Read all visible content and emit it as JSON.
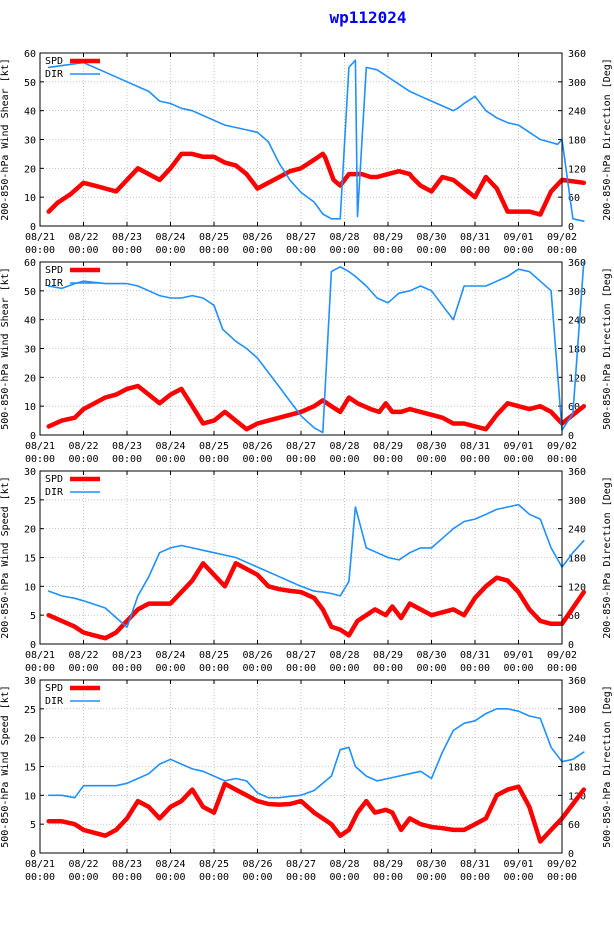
{
  "title": "wp112024",
  "colors": {
    "spd": "#ff0000",
    "dir": "#1e90ff",
    "frame": "#000000",
    "grid": "#a0a0a0",
    "title": "#0000ff"
  },
  "x_tick_labels": [
    [
      "08/21",
      "00:00"
    ],
    [
      "08/22",
      "00:00"
    ],
    [
      "08/23",
      "00:00"
    ],
    [
      "08/24",
      "00:00"
    ],
    [
      "08/25",
      "00:00"
    ],
    [
      "08/26",
      "00:00"
    ],
    [
      "08/27",
      "00:00"
    ],
    [
      "08/28",
      "00:00"
    ],
    [
      "08/29",
      "00:00"
    ],
    [
      "08/30",
      "00:00"
    ],
    [
      "08/31",
      "00:00"
    ],
    [
      "09/01",
      "00:00"
    ],
    [
      "09/02",
      "00:00"
    ]
  ],
  "chart_data": [
    {
      "type": "line",
      "ylabel": "200-850-hPa Wind Shear [kt]",
      "y2label": "200-850-hPa Direction [Deg]",
      "xlim": [
        0,
        12
      ],
      "ylim": [
        0,
        60
      ],
      "yticks": [
        0,
        10,
        20,
        30,
        40,
        50,
        60
      ],
      "y2lim": [
        0,
        360
      ],
      "y2ticks": [
        0,
        60,
        120,
        180,
        240,
        300,
        360
      ],
      "legend": [
        "SPD",
        "DIR"
      ],
      "series": [
        {
          "name": "SPD",
          "axis": "left",
          "x": [
            0.2,
            0.4,
            0.7,
            1.0,
            1.25,
            1.5,
            1.75,
            2.0,
            2.25,
            2.5,
            2.75,
            3.0,
            3.25,
            3.5,
            3.75,
            4.0,
            4.25,
            4.5,
            4.75,
            5.0,
            5.25,
            5.5,
            5.75,
            6.0,
            6.3,
            6.5,
            6.55,
            6.75,
            6.9,
            7.1,
            7.4,
            7.6,
            7.75,
            8.0,
            8.25,
            8.5,
            8.55,
            8.75,
            9.0,
            9.25,
            9.5,
            9.75,
            10.0,
            10.25,
            10.5,
            10.75,
            11.0,
            11.25,
            11.5,
            11.75,
            12.0,
            12.5
          ],
          "values": [
            5,
            8,
            11,
            15,
            14,
            13,
            12,
            16,
            20,
            18,
            16,
            20,
            25,
            25,
            24,
            24,
            22,
            21,
            18,
            13,
            15,
            17,
            19,
            20,
            23,
            25,
            24,
            16,
            14,
            18,
            18,
            17,
            17,
            18,
            19,
            18,
            17,
            14,
            12,
            17,
            16,
            13,
            10,
            17,
            13,
            5,
            5,
            5,
            4,
            12,
            16,
            15
          ]
        },
        {
          "name": "DIR",
          "axis": "right",
          "x": [
            0.2,
            1.0,
            1.5,
            2.0,
            2.25,
            2.5,
            2.75,
            3.0,
            3.25,
            3.5,
            3.75,
            4.0,
            4.25,
            4.5,
            4.75,
            5.0,
            5.25,
            5.5,
            5.75,
            6.0,
            6.3,
            6.5,
            6.7,
            6.9,
            7.1,
            7.25,
            7.3,
            7.5,
            7.75,
            8.0,
            8.25,
            8.5,
            8.75,
            9.0,
            9.25,
            9.5,
            9.6,
            9.75,
            10.0,
            10.25,
            10.5,
            10.75,
            11.0,
            11.25,
            11.5,
            11.7,
            11.9,
            12.0,
            12.25,
            12.5
          ],
          "values": [
            330,
            340,
            320,
            300,
            290,
            280,
            260,
            255,
            245,
            240,
            230,
            220,
            210,
            205,
            200,
            195,
            175,
            130,
            95,
            70,
            50,
            25,
            15,
            15,
            330,
            345,
            20,
            330,
            325,
            310,
            295,
            280,
            270,
            260,
            250,
            240,
            245,
            255,
            270,
            240,
            225,
            215,
            210,
            195,
            180,
            175,
            170,
            180,
            15,
            10
          ]
        }
      ]
    },
    {
      "type": "line",
      "ylabel": "500-850-hPa Wind Shear [kt]",
      "y2label": "500-850-hPa Direction [Deg]",
      "xlim": [
        0,
        12
      ],
      "ylim": [
        0,
        60
      ],
      "yticks": [
        0,
        10,
        20,
        30,
        40,
        50,
        60
      ],
      "y2lim": [
        0,
        360
      ],
      "y2ticks": [
        0,
        60,
        120,
        180,
        240,
        300,
        360
      ],
      "legend": [
        "SPD",
        "DIR"
      ],
      "series": [
        {
          "name": "SPD",
          "axis": "left",
          "x": [
            0.2,
            0.5,
            0.8,
            1.0,
            1.25,
            1.5,
            1.75,
            2.0,
            2.25,
            2.5,
            2.75,
            3.0,
            3.25,
            3.5,
            3.75,
            4.0,
            4.25,
            4.5,
            4.75,
            5.0,
            5.25,
            5.5,
            5.75,
            6.0,
            6.3,
            6.5,
            6.7,
            6.9,
            7.1,
            7.3,
            7.6,
            7.8,
            7.95,
            8.1,
            8.3,
            8.5,
            8.75,
            9.0,
            9.25,
            9.5,
            9.75,
            10.0,
            10.25,
            10.5,
            10.75,
            11.0,
            11.25,
            11.5,
            11.75,
            12.0,
            12.5
          ],
          "values": [
            3,
            5,
            6,
            9,
            11,
            13,
            14,
            16,
            17,
            14,
            11,
            14,
            16,
            10,
            4,
            5,
            8,
            5,
            2,
            4,
            5,
            6,
            7,
            8,
            10,
            12,
            10,
            8,
            13,
            11,
            9,
            8,
            11,
            8,
            8,
            9,
            8,
            7,
            6,
            4,
            4,
            3,
            2,
            7,
            11,
            10,
            9,
            10,
            8,
            4,
            10
          ]
        },
        {
          "name": "DIR",
          "axis": "right",
          "x": [
            0.2,
            0.5,
            0.8,
            1.0,
            1.5,
            2.0,
            2.25,
            2.5,
            2.75,
            3.0,
            3.25,
            3.5,
            3.75,
            4.0,
            4.2,
            4.5,
            4.75,
            5.0,
            5.25,
            5.5,
            5.75,
            6.0,
            6.3,
            6.5,
            6.7,
            6.9,
            7.1,
            7.25,
            7.5,
            7.75,
            8.0,
            8.25,
            8.5,
            8.75,
            9.0,
            9.25,
            9.5,
            9.75,
            10.0,
            10.25,
            10.5,
            10.75,
            11.0,
            11.25,
            11.5,
            11.75,
            12.0,
            12.25,
            12.5
          ],
          "values": [
            310,
            305,
            315,
            320,
            315,
            315,
            310,
            300,
            290,
            285,
            285,
            290,
            285,
            270,
            220,
            195,
            180,
            160,
            130,
            100,
            70,
            40,
            15,
            5,
            340,
            350,
            340,
            330,
            310,
            285,
            275,
            295,
            300,
            310,
            300,
            270,
            240,
            310,
            310,
            310,
            320,
            330,
            345,
            340,
            320,
            300,
            10,
            45,
            360
          ]
        }
      ]
    },
    {
      "type": "line",
      "ylabel": "200-850-hPa Wind Speed [kt]",
      "y2label": "200-850-hPa Direction [Deg]",
      "xlim": [
        0,
        12
      ],
      "ylim": [
        0,
        30
      ],
      "yticks": [
        0,
        5,
        10,
        15,
        20,
        25,
        30
      ],
      "y2lim": [
        0,
        360
      ],
      "y2ticks": [
        0,
        60,
        120,
        180,
        240,
        300,
        360
      ],
      "legend": [
        "SPD",
        "DIR"
      ],
      "series": [
        {
          "name": "SPD",
          "axis": "left",
          "x": [
            0.2,
            0.5,
            0.8,
            1.0,
            1.25,
            1.5,
            1.75,
            2.0,
            2.25,
            2.5,
            2.75,
            3.0,
            3.25,
            3.5,
            3.75,
            4.0,
            4.25,
            4.5,
            4.75,
            5.0,
            5.25,
            5.5,
            5.75,
            6.0,
            6.3,
            6.5,
            6.7,
            6.9,
            7.1,
            7.3,
            7.5,
            7.7,
            7.95,
            8.1,
            8.3,
            8.5,
            8.75,
            9.0,
            9.25,
            9.5,
            9.75,
            10.0,
            10.25,
            10.5,
            10.75,
            11.0,
            11.25,
            11.5,
            11.75,
            12.0,
            12.5
          ],
          "values": [
            5,
            4,
            3,
            2,
            1.5,
            1,
            2,
            4,
            6,
            7,
            7,
            7,
            9,
            11,
            14,
            12,
            10,
            14,
            13,
            12,
            10,
            9.5,
            9.2,
            9,
            8,
            6,
            3,
            2.5,
            1.5,
            4,
            5,
            6,
            5,
            6.5,
            4.5,
            7,
            6,
            5,
            5.5,
            6,
            5,
            8,
            10,
            11.5,
            11,
            9,
            6,
            4,
            3.5,
            3.5,
            9
          ]
        },
        {
          "name": "DIR",
          "axis": "right",
          "x": [
            0.2,
            0.5,
            0.8,
            1.0,
            1.5,
            1.75,
            2.0,
            2.25,
            2.5,
            2.75,
            3.0,
            3.25,
            3.5,
            3.75,
            4.0,
            4.25,
            4.5,
            4.75,
            5.0,
            5.25,
            5.5,
            5.75,
            6.0,
            6.3,
            6.5,
            6.7,
            6.9,
            7.1,
            7.25,
            7.5,
            7.75,
            8.0,
            8.25,
            8.5,
            8.75,
            9.0,
            9.25,
            9.5,
            9.75,
            10.0,
            10.25,
            10.5,
            10.75,
            11.0,
            11.25,
            11.5,
            11.75,
            12.0,
            12.25,
            12.5
          ],
          "values": [
            110,
            100,
            95,
            90,
            75,
            55,
            35,
            100,
            140,
            190,
            200,
            205,
            200,
            195,
            190,
            185,
            180,
            170,
            160,
            150,
            140,
            130,
            120,
            110,
            108,
            105,
            100,
            130,
            285,
            200,
            190,
            180,
            175,
            190,
            200,
            200,
            220,
            240,
            255,
            260,
            270,
            280,
            285,
            290,
            270,
            260,
            200,
            160,
            190,
            215
          ]
        }
      ]
    },
    {
      "type": "line",
      "ylabel": "500-850-hPa Wind Speed [kt]",
      "y2label": "500-850-hPa Direction [Deg]",
      "xlim": [
        0,
        12
      ],
      "ylim": [
        0,
        30
      ],
      "yticks": [
        0,
        5,
        10,
        15,
        20,
        25,
        30
      ],
      "y2lim": [
        0,
        360
      ],
      "y2ticks": [
        0,
        60,
        120,
        180,
        240,
        300,
        360
      ],
      "legend": [
        "SPD",
        "DIR"
      ],
      "series": [
        {
          "name": "SPD",
          "axis": "left",
          "x": [
            0.2,
            0.5,
            0.8,
            1.0,
            1.25,
            1.5,
            1.75,
            2.0,
            2.25,
            2.5,
            2.75,
            3.0,
            3.25,
            3.5,
            3.75,
            4.0,
            4.25,
            4.5,
            4.75,
            5.0,
            5.25,
            5.5,
            5.75,
            6.0,
            6.3,
            6.5,
            6.7,
            6.9,
            7.1,
            7.3,
            7.5,
            7.7,
            7.95,
            8.1,
            8.3,
            8.5,
            8.75,
            9.0,
            9.25,
            9.5,
            9.75,
            10.0,
            10.25,
            10.5,
            10.75,
            11.0,
            11.25,
            11.5,
            11.75,
            12.0,
            12.5
          ],
          "values": [
            5.5,
            5.5,
            5,
            4,
            3.5,
            3,
            4,
            6,
            9,
            8,
            6,
            8,
            9,
            11,
            8,
            7,
            12,
            11,
            10,
            9,
            8.5,
            8.4,
            8.5,
            9,
            7,
            6,
            5,
            3,
            4,
            7,
            9,
            7,
            7.5,
            7,
            4,
            6,
            5,
            4.5,
            4.3,
            4,
            4,
            5,
            6,
            10,
            11,
            11.5,
            8,
            2,
            4,
            6,
            11
          ]
        },
        {
          "name": "DIR",
          "axis": "right",
          "x": [
            0.2,
            0.5,
            0.8,
            1.0,
            1.25,
            1.5,
            1.75,
            2.0,
            2.25,
            2.5,
            2.75,
            3.0,
            3.25,
            3.5,
            3.75,
            4.0,
            4.25,
            4.5,
            4.75,
            5.0,
            5.25,
            5.5,
            5.75,
            6.0,
            6.3,
            6.5,
            6.7,
            6.9,
            7.1,
            7.25,
            7.5,
            7.75,
            8.0,
            8.25,
            8.5,
            8.75,
            9.0,
            9.25,
            9.5,
            9.75,
            10.0,
            10.25,
            10.5,
            10.75,
            11.0,
            11.25,
            11.5,
            11.75,
            12.0,
            12.25,
            12.5
          ],
          "values": [
            120,
            120,
            115,
            140,
            140,
            140,
            140,
            145,
            155,
            165,
            185,
            195,
            185,
            175,
            170,
            160,
            150,
            155,
            150,
            125,
            115,
            115,
            118,
            120,
            130,
            145,
            160,
            215,
            220,
            180,
            160,
            150,
            155,
            160,
            165,
            170,
            155,
            210,
            255,
            270,
            275,
            290,
            300,
            300,
            295,
            285,
            280,
            220,
            190,
            195,
            210
          ]
        }
      ]
    }
  ]
}
